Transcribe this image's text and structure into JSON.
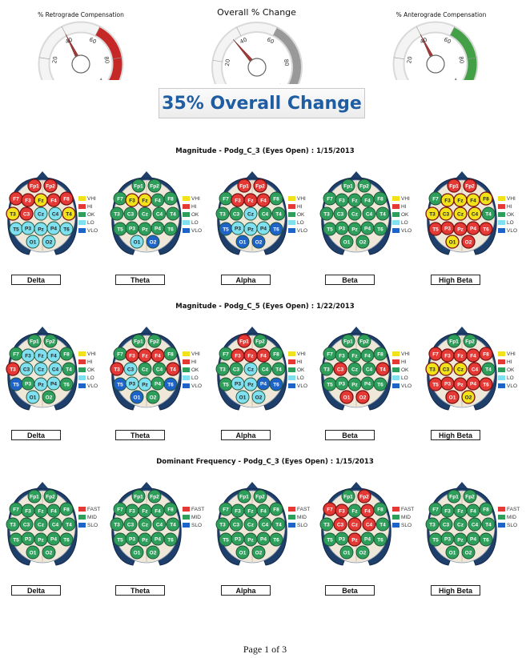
{
  "gauges": [
    {
      "title": "% Retrograde Compensation",
      "value": 40,
      "ticks": [
        "0",
        "20",
        "40",
        "60",
        "80",
        "100"
      ],
      "color": "#c62828"
    },
    {
      "title": "Overall % Change",
      "value": 35,
      "ticks": [
        "0",
        "20",
        "40",
        "60",
        "80",
        "100"
      ],
      "color": "#999999"
    },
    {
      "title": "% Anterograde Compensation",
      "value": 40,
      "ticks": [
        "0",
        "20",
        "40",
        "60",
        "80",
        "100"
      ],
      "color": "#43a047"
    }
  ],
  "headline": "35% Overall Change",
  "status_colors": {
    "VHI": "#f2e21a",
    "HI": "#e53935",
    "OK": "#2e9e5b",
    "LO": "#7fe0f0",
    "VLO": "#1e63c8",
    "FAST": "#e53935",
    "MID": "#2e9e5b",
    "SLO": "#1e63c8"
  },
  "electrodes": [
    "Fp1",
    "Fp2",
    "F7",
    "F3",
    "Fz",
    "F4",
    "F8",
    "T3",
    "C3",
    "Cz",
    "C4",
    "T4",
    "T5",
    "P3",
    "Pz",
    "P4",
    "T6",
    "O1",
    "O2"
  ],
  "sections": [
    {
      "title": "Magnitude - Podg_C_3 (Eyes Open) : 1/15/2013",
      "legend": [
        "VHI",
        "HI",
        "OK",
        "LO",
        "VLO"
      ],
      "maps": [
        {
          "band": "Delta",
          "states": [
            "HI",
            "HI",
            "HI",
            "HI",
            "VHI",
            "HI",
            "HI",
            "VHI",
            "HI",
            "LO",
            "LO",
            "VHI",
            "LO",
            "LO",
            "LO",
            "LO",
            "LO",
            "LO",
            "LO"
          ]
        },
        {
          "band": "Theta",
          "states": [
            "OK",
            "OK",
            "OK",
            "VHI",
            "VHI",
            "OK",
            "OK",
            "OK",
            "OK",
            "OK",
            "OK",
            "OK",
            "OK",
            "OK",
            "OK",
            "OK",
            "OK",
            "LO",
            "VLO"
          ]
        },
        {
          "band": "Alpha",
          "states": [
            "HI",
            "HI",
            "OK",
            "HI",
            "HI",
            "HI",
            "OK",
            "OK",
            "OK",
            "LO",
            "OK",
            "OK",
            "VLO",
            "LO",
            "LO",
            "LO",
            "VLO",
            "VLO",
            "VLO"
          ]
        },
        {
          "band": "Beta",
          "states": [
            "OK",
            "OK",
            "OK",
            "OK",
            "OK",
            "OK",
            "OK",
            "OK",
            "OK",
            "OK",
            "OK",
            "OK",
            "OK",
            "OK",
            "OK",
            "OK",
            "OK",
            "OK",
            "OK"
          ]
        },
        {
          "band": "High Beta",
          "states": [
            "HI",
            "HI",
            "OK",
            "VHI",
            "VHI",
            "VHI",
            "VHI",
            "VHI",
            "VHI",
            "VHI",
            "VHI",
            "OK",
            "HI",
            "HI",
            "HI",
            "HI",
            "HI",
            "VHI",
            "HI"
          ]
        }
      ]
    },
    {
      "title": "Magnitude - Podg_C_5 (Eyes Open) : 1/22/2013",
      "legend": [
        "VHI",
        "HI",
        "OK",
        "LO",
        "VLO"
      ],
      "maps": [
        {
          "band": "Delta",
          "states": [
            "OK",
            "OK",
            "OK",
            "LO",
            "LO",
            "LO",
            "OK",
            "HI",
            "LO",
            "LO",
            "LO",
            "OK",
            "VLO",
            "OK",
            "LO",
            "LO",
            "OK",
            "LO",
            "OK"
          ]
        },
        {
          "band": "Theta",
          "states": [
            "OK",
            "OK",
            "OK",
            "HI",
            "HI",
            "HI",
            "OK",
            "HI",
            "LO",
            "OK",
            "OK",
            "HI",
            "VLO",
            "LO",
            "LO",
            "OK",
            "VLO",
            "VLO",
            "OK"
          ]
        },
        {
          "band": "Alpha",
          "states": [
            "HI",
            "OK",
            "OK",
            "HI",
            "HI",
            "HI",
            "OK",
            "OK",
            "OK",
            "LO",
            "OK",
            "OK",
            "OK",
            "LO",
            "LO",
            "VLO",
            "VLO",
            "LO",
            "LO"
          ]
        },
        {
          "band": "Beta",
          "states": [
            "OK",
            "OK",
            "OK",
            "OK",
            "OK",
            "OK",
            "OK",
            "OK",
            "HI",
            "OK",
            "OK",
            "HI",
            "OK",
            "OK",
            "OK",
            "OK",
            "OK",
            "HI",
            "HI"
          ]
        },
        {
          "band": "High Beta",
          "states": [
            "OK",
            "OK",
            "HI",
            "HI",
            "HI",
            "HI",
            "HI",
            "VHI",
            "VHI",
            "VHI",
            "HI",
            "OK",
            "HI",
            "HI",
            "HI",
            "HI",
            "HI",
            "HI",
            "VHI"
          ]
        }
      ]
    },
    {
      "title": "Dominant Frequency - Podg_C_3 (Eyes Open) : 1/15/2013",
      "legend": [
        "FAST",
        "MID",
        "SLO"
      ],
      "maps": [
        {
          "band": "Delta",
          "states": [
            "MID",
            "MID",
            "MID",
            "MID",
            "MID",
            "MID",
            "MID",
            "MID",
            "MID",
            "MID",
            "MID",
            "MID",
            "MID",
            "MID",
            "MID",
            "MID",
            "MID",
            "MID",
            "MID"
          ]
        },
        {
          "band": "Theta",
          "states": [
            "MID",
            "MID",
            "MID",
            "MID",
            "MID",
            "MID",
            "MID",
            "MID",
            "MID",
            "MID",
            "MID",
            "MID",
            "MID",
            "MID",
            "MID",
            "MID",
            "MID",
            "MID",
            "MID"
          ]
        },
        {
          "band": "Alpha",
          "states": [
            "MID",
            "MID",
            "MID",
            "MID",
            "MID",
            "MID",
            "MID",
            "MID",
            "MID",
            "MID",
            "MID",
            "MID",
            "MID",
            "MID",
            "MID",
            "MID",
            "MID",
            "MID",
            "MID"
          ]
        },
        {
          "band": "Beta",
          "states": [
            "MID",
            "FAST",
            "FAST",
            "FAST",
            "MID",
            "FAST",
            "MID",
            "MID",
            "FAST",
            "FAST",
            "FAST",
            "MID",
            "MID",
            "MID",
            "FAST",
            "MID",
            "MID",
            "MID",
            "MID"
          ]
        },
        {
          "band": "High Beta",
          "states": [
            "MID",
            "MID",
            "MID",
            "MID",
            "MID",
            "MID",
            "MID",
            "MID",
            "MID",
            "MID",
            "MID",
            "MID",
            "MID",
            "MID",
            "MID",
            "MID",
            "MID",
            "MID",
            "MID"
          ]
        }
      ]
    }
  ],
  "chart_data": {
    "type": "heatmap",
    "description_units": "categorical state per electrode per band",
    "legend_magnitude": [
      "VHI",
      "HI",
      "OK",
      "LO",
      "VLO"
    ],
    "legend_frequency": [
      "FAST",
      "MID",
      "SLO"
    ]
  },
  "footer": "Page 1 of 3"
}
